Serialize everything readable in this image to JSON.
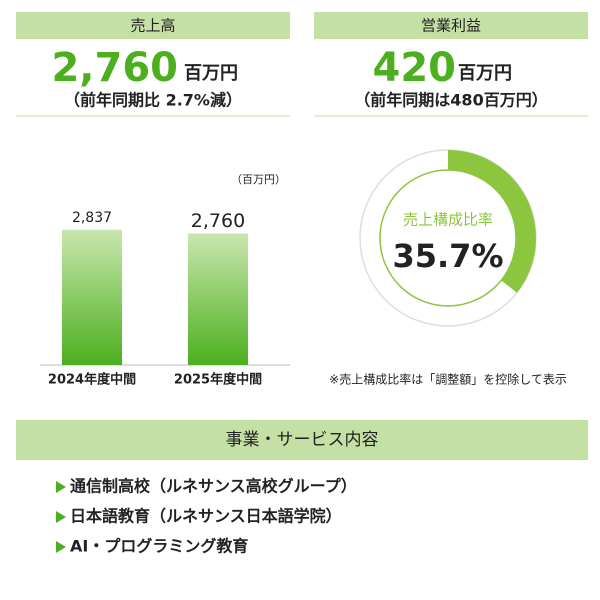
{
  "sales": {
    "label": "売上高",
    "value": "2,760",
    "unit": "百万円",
    "note": "（前年同期比 2.7%減）"
  },
  "profit": {
    "label": "営業利益",
    "value": "420",
    "unit": "百万円",
    "note": "（前年同期は480百万円）"
  },
  "chart_data": [
    {
      "type": "bar",
      "unit_label": "（百万円）",
      "categories": [
        "2024年度中間",
        "2025年度中間"
      ],
      "values": [
        2837,
        2760
      ],
      "value_labels": [
        "2,837",
        "2,760"
      ],
      "ylim": [
        0,
        3000
      ],
      "color": "#4caf1f"
    },
    {
      "type": "donut",
      "center_label": "売上構成比率",
      "values": [
        35.7
      ],
      "value_labels": [
        "35.7%"
      ],
      "color": "#8cc63f"
    }
  ],
  "note": "※売上構成比率は「調整額」を控除して表示",
  "services": {
    "title": "事業・サービス内容",
    "items": [
      "通信制高校（ルネサンス高校グループ）",
      "日本語教育（ルネサンス日本語学院）",
      "AI・プログラミング教育"
    ]
  }
}
